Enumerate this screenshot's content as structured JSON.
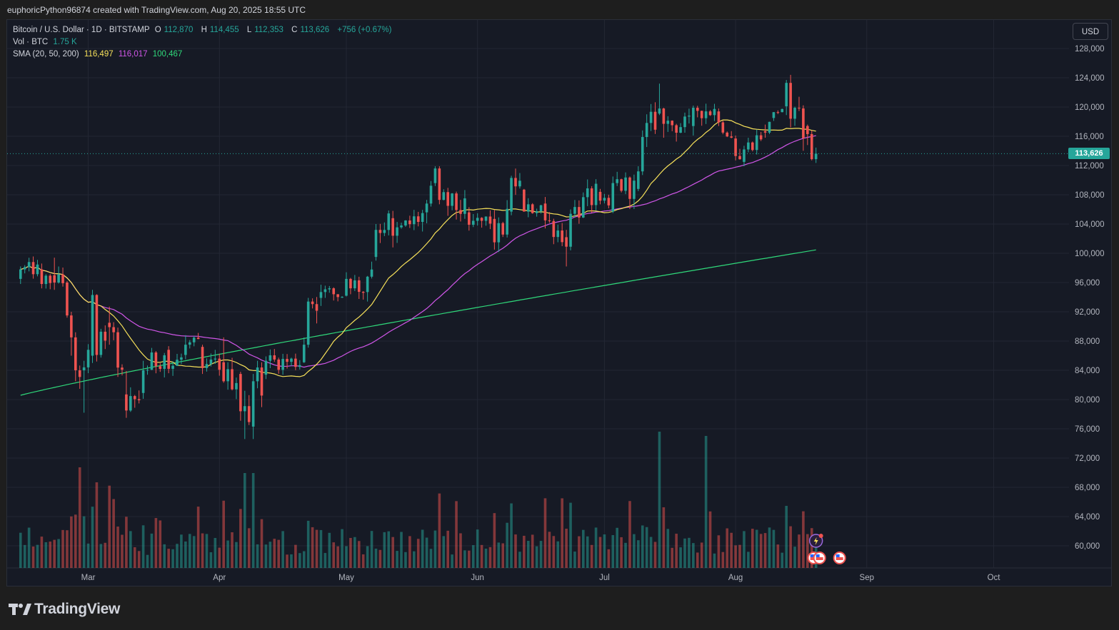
{
  "header": {
    "created_text": "euphoricPython96874 created with TradingView.com, Aug 20, 2025 18:55 UTC"
  },
  "legend": {
    "symbol": "Bitcoin / U.S. Dollar · 1D · BITSTAMP",
    "o_label": "O",
    "o_value": "112,870",
    "h_label": "H",
    "h_value": "114,455",
    "l_label": "L",
    "l_value": "112,353",
    "c_label": "C",
    "c_value": "113,626",
    "change": "+756 (+0.67%)",
    "vol_label": "Vol · BTC",
    "vol_value": "1.75 K",
    "sma_label": "SMA (20, 50, 200)",
    "sma20": "116,497",
    "sma50": "116,017",
    "sma200": "100,467"
  },
  "toolbar": {
    "currency_button": "USD"
  },
  "last_price_label": "113,626",
  "footer": {
    "brand": "TradingView"
  },
  "colors": {
    "up": "#26a69a",
    "down": "#ef5350",
    "sma20": "#f7e15a",
    "sma50": "#d056e8",
    "sma200": "#2fd87a",
    "background": "#161a25",
    "grid": "#232734"
  },
  "chart_data": {
    "type": "candlestick",
    "title": "Bitcoin / U.S. Dollar · 1D · BITSTAMP",
    "x_ticks": [
      "Mar",
      "Apr",
      "May",
      "Jun",
      "Jul",
      "Aug",
      "Sep",
      "Oct"
    ],
    "y_ticks": [
      "128,000",
      "124,000",
      "120,000",
      "116,000",
      "112,000",
      "108,000",
      "104,000",
      "100,000",
      "96,000",
      "92,000",
      "88,000",
      "84,000",
      "80,000",
      "76,000",
      "72,000",
      "68,000",
      "64,000",
      "60,000"
    ],
    "ylim": [
      57000,
      130000
    ],
    "candles": [
      {
        "date": "2025-02-13",
        "o": 96500,
        "h": 98200,
        "l": 95800,
        "c": 97800
      },
      {
        "date": "2025-02-18",
        "o": 97800,
        "h": 98600,
        "l": 95200,
        "c": 95800
      },
      {
        "date": "2025-02-21",
        "o": 97000,
        "h": 99400,
        "l": 95000,
        "c": 96000
      },
      {
        "date": "2025-02-24",
        "o": 96000,
        "h": 96200,
        "l": 91200,
        "c": 91500
      },
      {
        "date": "2025-02-25",
        "o": 91500,
        "h": 92000,
        "l": 86000,
        "c": 88500
      },
      {
        "date": "2025-02-26",
        "o": 88500,
        "h": 89200,
        "l": 82500,
        "c": 84000
      },
      {
        "date": "2025-02-28",
        "o": 84000,
        "h": 85300,
        "l": 78200,
        "c": 84400
      },
      {
        "date": "2025-03-02",
        "o": 86000,
        "h": 95000,
        "l": 85000,
        "c": 94300
      },
      {
        "date": "2025-03-03",
        "o": 94300,
        "h": 94400,
        "l": 85200,
        "c": 86100
      },
      {
        "date": "2025-03-06",
        "o": 90500,
        "h": 92700,
        "l": 87500,
        "c": 89900
      },
      {
        "date": "2025-03-10",
        "o": 80700,
        "h": 83900,
        "l": 77500,
        "c": 78500
      },
      {
        "date": "2025-03-14",
        "o": 80900,
        "h": 85300,
        "l": 80100,
        "c": 84000
      },
      {
        "date": "2025-03-20",
        "o": 86800,
        "h": 87300,
        "l": 83600,
        "c": 84200
      },
      {
        "date": "2025-03-24",
        "o": 86100,
        "h": 88800,
        "l": 85500,
        "c": 87500
      },
      {
        "date": "2025-03-28",
        "o": 87200,
        "h": 87500,
        "l": 83500,
        "c": 84300
      },
      {
        "date": "2025-04-02",
        "o": 85100,
        "h": 88500,
        "l": 82300,
        "c": 82500
      },
      {
        "date": "2025-04-06",
        "o": 83500,
        "h": 83800,
        "l": 77100,
        "c": 78400
      },
      {
        "date": "2025-04-07",
        "o": 78400,
        "h": 81200,
        "l": 74600,
        "c": 79100
      },
      {
        "date": "2025-04-09",
        "o": 76300,
        "h": 83500,
        "l": 74600,
        "c": 82500
      },
      {
        "date": "2025-04-12",
        "o": 83400,
        "h": 85900,
        "l": 82800,
        "c": 85300
      },
      {
        "date": "2025-04-21",
        "o": 85100,
        "h": 88500,
        "l": 85000,
        "c": 87500
      },
      {
        "date": "2025-04-22",
        "o": 87500,
        "h": 93900,
        "l": 87100,
        "c": 93400
      },
      {
        "date": "2025-04-25",
        "o": 93900,
        "h": 95700,
        "l": 92800,
        "c": 94700
      },
      {
        "date": "2025-05-01",
        "o": 94200,
        "h": 97400,
        "l": 94100,
        "c": 96500
      },
      {
        "date": "2025-05-06",
        "o": 94700,
        "h": 96900,
        "l": 93400,
        "c": 96800
      },
      {
        "date": "2025-05-08",
        "o": 99500,
        "h": 104000,
        "l": 99000,
        "c": 103200
      },
      {
        "date": "2025-05-12",
        "o": 104800,
        "h": 105800,
        "l": 100800,
        "c": 102400
      },
      {
        "date": "2025-05-20",
        "o": 105600,
        "h": 107300,
        "l": 104100,
        "c": 106800
      },
      {
        "date": "2025-05-22",
        "o": 109600,
        "h": 111900,
        "l": 109200,
        "c": 111600
      },
      {
        "date": "2025-05-23",
        "o": 111600,
        "h": 111900,
        "l": 106700,
        "c": 107300
      },
      {
        "date": "2025-05-30",
        "o": 105600,
        "h": 106300,
        "l": 103100,
        "c": 103900
      },
      {
        "date": "2025-06-05",
        "o": 104700,
        "h": 105900,
        "l": 100500,
        "c": 101500
      },
      {
        "date": "2025-06-09",
        "o": 105700,
        "h": 110600,
        "l": 105200,
        "c": 110300
      },
      {
        "date": "2025-06-12",
        "o": 108700,
        "h": 108800,
        "l": 105700,
        "c": 105700
      },
      {
        "date": "2025-06-17",
        "o": 106800,
        "h": 107700,
        "l": 103400,
        "c": 104500
      },
      {
        "date": "2025-06-22",
        "o": 102200,
        "h": 103200,
        "l": 98200,
        "c": 100900
      },
      {
        "date": "2025-06-23",
        "o": 100900,
        "h": 106000,
        "l": 100400,
        "c": 105400
      },
      {
        "date": "2025-06-30",
        "o": 108400,
        "h": 108800,
        "l": 106700,
        "c": 107200
      },
      {
        "date": "2025-07-03",
        "o": 105700,
        "h": 110500,
        "l": 105500,
        "c": 109600
      },
      {
        "date": "2025-07-09",
        "o": 108800,
        "h": 111900,
        "l": 108500,
        "c": 111200
      },
      {
        "date": "2025-07-10",
        "o": 111200,
        "h": 116800,
        "l": 110700,
        "c": 115900
      },
      {
        "date": "2025-07-14",
        "o": 119100,
        "h": 123200,
        "l": 118900,
        "c": 119800
      },
      {
        "date": "2025-07-15",
        "o": 119800,
        "h": 119900,
        "l": 115800,
        "c": 117700
      },
      {
        "date": "2025-07-22",
        "o": 117400,
        "h": 120200,
        "l": 116100,
        "c": 119900
      },
      {
        "date": "2025-07-28",
        "o": 119400,
        "h": 119800,
        "l": 117400,
        "c": 117900
      },
      {
        "date": "2025-08-01",
        "o": 115700,
        "h": 116100,
        "l": 112700,
        "c": 113300
      },
      {
        "date": "2025-08-03",
        "o": 112500,
        "h": 114700,
        "l": 111900,
        "c": 114200
      },
      {
        "date": "2025-08-08",
        "o": 116700,
        "h": 117600,
        "l": 115800,
        "c": 116500
      },
      {
        "date": "2025-08-10",
        "o": 118500,
        "h": 119300,
        "l": 118100,
        "c": 119300
      },
      {
        "date": "2025-08-13",
        "o": 120100,
        "h": 123700,
        "l": 118900,
        "c": 123300
      },
      {
        "date": "2025-08-14",
        "o": 123300,
        "h": 124400,
        "l": 117200,
        "c": 118400
      },
      {
        "date": "2025-08-18",
        "o": 117400,
        "h": 117600,
        "l": 114800,
        "c": 116300
      },
      {
        "date": "2025-08-19",
        "o": 116300,
        "h": 116800,
        "l": 112700,
        "c": 112870
      },
      {
        "date": "2025-08-20",
        "o": 112870,
        "h": 114455,
        "l": 112353,
        "c": 113626
      }
    ],
    "series": [
      {
        "name": "SMA 20"
      },
      {
        "name": "SMA 50"
      },
      {
        "name": "SMA 200"
      }
    ]
  }
}
